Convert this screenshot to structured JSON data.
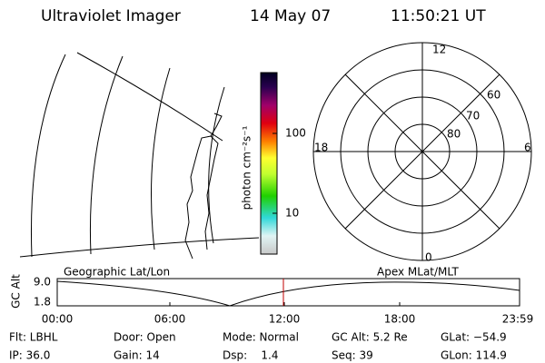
{
  "header": {
    "instrument": "Ultraviolet Imager",
    "date": "14 May 07",
    "time": "11:50:21 UT"
  },
  "colorbar": {
    "label": "photon cm⁻²s⁻¹",
    "ticks": [
      "100",
      "10"
    ]
  },
  "polar": {
    "mlt_labels": [
      "12",
      "6",
      "0",
      "18"
    ],
    "lat_labels": [
      "60",
      "70",
      "80"
    ]
  },
  "altitude": {
    "left_label": "Geographic Lat/Lon",
    "right_label": "Apex MLat/MLT",
    "axis_label": "GC Alt",
    "yticks": [
      "9.0",
      "1.8"
    ],
    "xticks": [
      "00:00",
      "06:00",
      "12:00",
      "18:00",
      "23:59"
    ]
  },
  "footer": {
    "rows": [
      [
        "Flt: LBHL",
        "Door: Open",
        "Mode: Normal",
        "GC Alt: 5.2 Re",
        "GLat: −54.9"
      ],
      [
        "IP: 36.0",
        "Gain: 14",
        "Dsp:    1.4",
        "Seq: 39",
        "GLon: 114.9"
      ]
    ]
  }
}
